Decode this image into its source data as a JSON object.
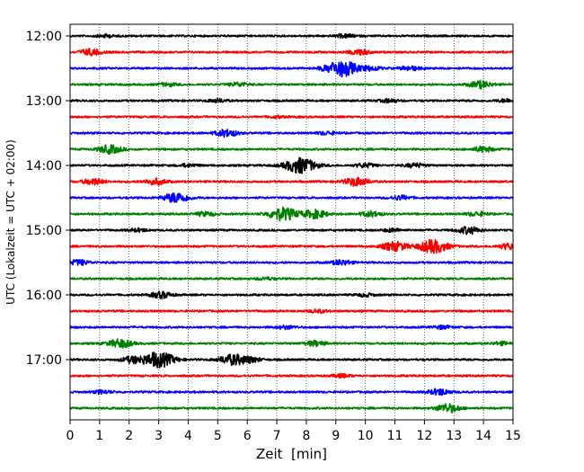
{
  "chart_data": {
    "type": "line",
    "title": "",
    "xlabel": "Zeit  [min]",
    "ylabel": "UTC (Lokalzeit = UTC + 02:00)",
    "xlim": [
      0,
      15
    ],
    "xticks": [
      0,
      1,
      2,
      3,
      4,
      5,
      6,
      7,
      8,
      9,
      10,
      11,
      12,
      13,
      14,
      15
    ],
    "ytick_labels": [
      "12:00",
      "13:00",
      "14:00",
      "15:00",
      "16:00",
      "17:00"
    ],
    "trace_interval_min": 15,
    "grid": {
      "x": true,
      "y": false,
      "style": "dotted"
    },
    "colors": [
      "#000000",
      "#ff0000",
      "#0000ff",
      "#008000"
    ],
    "series": [
      {
        "start": "12:00",
        "events": [
          [
            1.2,
            0.25
          ],
          [
            9.3,
            0.3
          ]
        ]
      },
      {
        "start": "12:15",
        "events": [
          [
            0.7,
            0.6
          ],
          [
            9.8,
            0.5
          ]
        ]
      },
      {
        "start": "12:30",
        "events": [
          [
            9.2,
            1.6
          ],
          [
            10.2,
            0.4
          ],
          [
            11.5,
            0.4
          ]
        ]
      },
      {
        "start": "12:45",
        "events": [
          [
            3.3,
            0.3
          ],
          [
            5.7,
            0.4
          ],
          [
            13.9,
            0.7
          ]
        ]
      },
      {
        "start": "13:00",
        "events": [
          [
            5.0,
            0.3
          ],
          [
            10.8,
            0.3
          ],
          [
            14.8,
            0.3
          ]
        ]
      },
      {
        "start": "13:15",
        "events": [
          [
            7.0,
            0.2
          ]
        ]
      },
      {
        "start": "13:30",
        "events": [
          [
            5.3,
            0.7
          ],
          [
            8.7,
            0.3
          ]
        ]
      },
      {
        "start": "13:45",
        "events": [
          [
            1.35,
            0.8
          ],
          [
            14.0,
            0.5
          ]
        ]
      },
      {
        "start": "14:00",
        "events": [
          [
            4.0,
            0.3
          ],
          [
            7.8,
            1.5
          ],
          [
            10.0,
            0.4
          ],
          [
            11.7,
            0.4
          ]
        ]
      },
      {
        "start": "14:15",
        "events": [
          [
            0.8,
            0.6
          ],
          [
            2.9,
            0.6
          ],
          [
            9.7,
            0.8
          ]
        ]
      },
      {
        "start": "14:30",
        "events": [
          [
            3.6,
            1.0
          ],
          [
            11.2,
            0.4
          ]
        ]
      },
      {
        "start": "14:45",
        "events": [
          [
            4.6,
            0.4
          ],
          [
            7.2,
            1.3
          ],
          [
            8.3,
            0.8
          ],
          [
            10.2,
            0.5
          ],
          [
            13.8,
            0.4
          ]
        ]
      },
      {
        "start": "15:00",
        "events": [
          [
            2.3,
            0.3
          ],
          [
            10.9,
            0.3
          ],
          [
            13.5,
            0.7
          ]
        ]
      },
      {
        "start": "15:15",
        "events": [
          [
            11.0,
            0.9
          ],
          [
            12.3,
            1.3
          ],
          [
            14.9,
            0.6
          ]
        ]
      },
      {
        "start": "15:30",
        "events": [
          [
            0.3,
            0.5
          ],
          [
            9.2,
            0.5
          ]
        ]
      },
      {
        "start": "15:45",
        "events": [
          [
            6.6,
            0.25
          ]
        ]
      },
      {
        "start": "16:00",
        "events": [
          [
            3.1,
            0.6
          ],
          [
            10.0,
            0.3
          ]
        ]
      },
      {
        "start": "16:15",
        "events": [
          [
            8.4,
            0.3
          ]
        ]
      },
      {
        "start": "16:30",
        "events": [
          [
            7.3,
            0.3
          ],
          [
            12.6,
            0.3
          ]
        ]
      },
      {
        "start": "16:45",
        "events": [
          [
            1.7,
            0.8
          ],
          [
            8.3,
            0.5
          ],
          [
            14.6,
            0.3
          ]
        ]
      },
      {
        "start": "17:00",
        "events": [
          [
            2.1,
            0.6
          ],
          [
            3.0,
            1.5
          ],
          [
            5.5,
            1.0
          ],
          [
            6.1,
            0.5
          ]
        ]
      },
      {
        "start": "17:15",
        "events": [
          [
            9.2,
            0.3
          ]
        ]
      },
      {
        "start": "17:30",
        "events": [
          [
            1.1,
            0.3
          ],
          [
            12.5,
            0.6
          ]
        ]
      },
      {
        "start": "17:45",
        "events": [
          [
            12.8,
            0.8
          ]
        ]
      }
    ]
  }
}
